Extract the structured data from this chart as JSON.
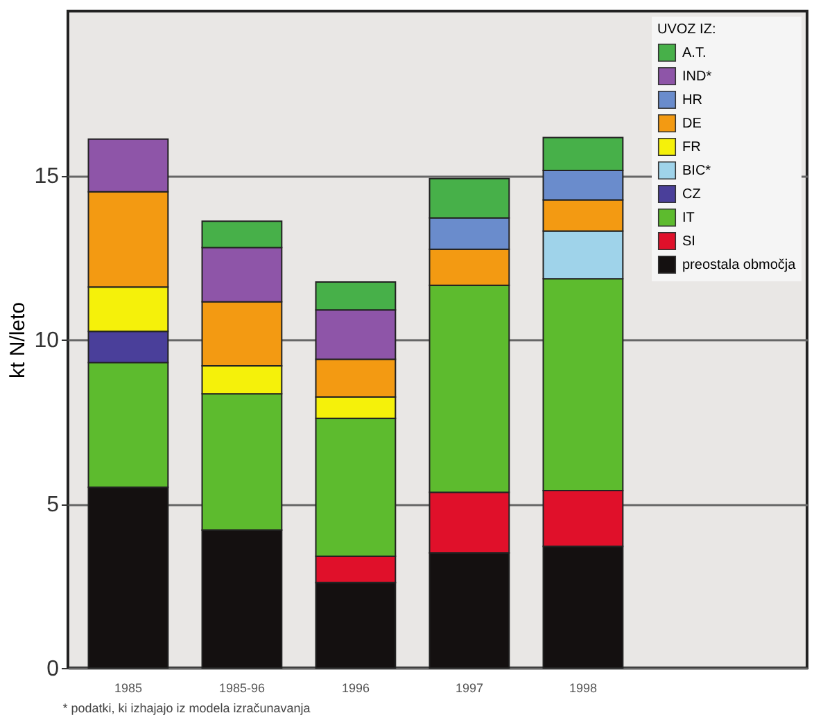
{
  "chart_data": {
    "type": "bar",
    "stacked": true,
    "ylabel": "kt N/leto",
    "legend_title": "UVOZ IZ:",
    "categories": [
      "1985",
      "1985-96",
      "1996",
      "1997",
      "1998"
    ],
    "ylim": [
      0,
      20
    ],
    "yticks": [
      0,
      5,
      10,
      15
    ],
    "grid": "y",
    "legend": "top right",
    "annotations": [
      "* podatki, ki izhajajo iz modela izračunavanja"
    ],
    "series": [
      {
        "name": "preostala območja",
        "color": "#141010",
        "values": [
          5.5,
          4.2,
          2.6,
          3.5,
          3.7
        ]
      },
      {
        "name": "SI",
        "color": "#e0102a",
        "values": [
          null,
          null,
          0.8,
          1.85,
          1.7
        ]
      },
      {
        "name": "IT",
        "color": "#5dbb2e",
        "values": [
          3.8,
          4.15,
          4.2,
          6.3,
          6.45
        ]
      },
      {
        "name": "CZ",
        "color": "#4a3f9a",
        "values": [
          0.95,
          null,
          null,
          null,
          null
        ]
      },
      {
        "name": "BIC*",
        "color": "#9fd3ea",
        "values": [
          null,
          null,
          null,
          null,
          1.45
        ]
      },
      {
        "name": "FR",
        "color": "#f5f10a",
        "values": [
          1.35,
          0.85,
          0.65,
          null,
          null
        ]
      },
      {
        "name": "DE",
        "color": "#f39a12",
        "values": [
          2.9,
          1.95,
          1.15,
          1.1,
          0.95
        ]
      },
      {
        "name": "HR",
        "color": "#6a8ccc",
        "values": [
          null,
          null,
          null,
          0.95,
          0.9
        ]
      },
      {
        "name": "IND*",
        "color": "#8e55a8",
        "values": [
          1.6,
          1.65,
          1.5,
          null,
          null
        ]
      },
      {
        "name": "A.T.",
        "color": "#47b049",
        "values": [
          null,
          0.8,
          0.85,
          1.2,
          1.0
        ]
      }
    ]
  }
}
